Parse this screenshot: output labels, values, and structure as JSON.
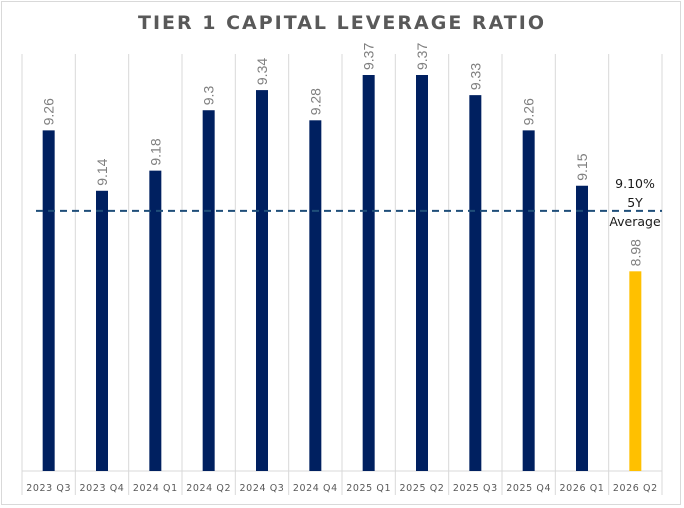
{
  "chart_data": {
    "type": "bar",
    "title": "TIER 1 CAPITAL LEVERAGE RATIO",
    "categories": [
      "2023 Q3",
      "2023 Q4",
      "2024 Q1",
      "2024 Q2",
      "2024 Q3",
      "2024 Q4",
      "2025 Q1",
      "2025 Q2",
      "2025 Q3",
      "2025 Q4",
      "2026 Q1",
      "2026 Q2"
    ],
    "values": [
      9.26,
      9.14,
      9.18,
      9.3,
      9.34,
      9.28,
      9.37,
      9.37,
      9.33,
      9.26,
      9.15,
      8.98
    ],
    "value_labels": [
      "9.26",
      "9.14",
      "9.18",
      "9.3",
      "9.34",
      "9.28",
      "9.37",
      "9.37",
      "9.33",
      "9.26",
      "9.15",
      "8.98"
    ],
    "highlight_index": 11,
    "xlabel": "",
    "ylabel": "",
    "grid": "vertical category separators",
    "reference_line": {
      "value": 9.1,
      "style": "dashed"
    },
    "colors": {
      "bar": "#002060",
      "highlight": "#FFC000",
      "reference_line": "#1F4E79",
      "value_label": "#7f7f7f",
      "title": "#595959"
    }
  },
  "annotation": {
    "value_text": "9.10%",
    "line2": "5Y",
    "line3": "Average"
  }
}
